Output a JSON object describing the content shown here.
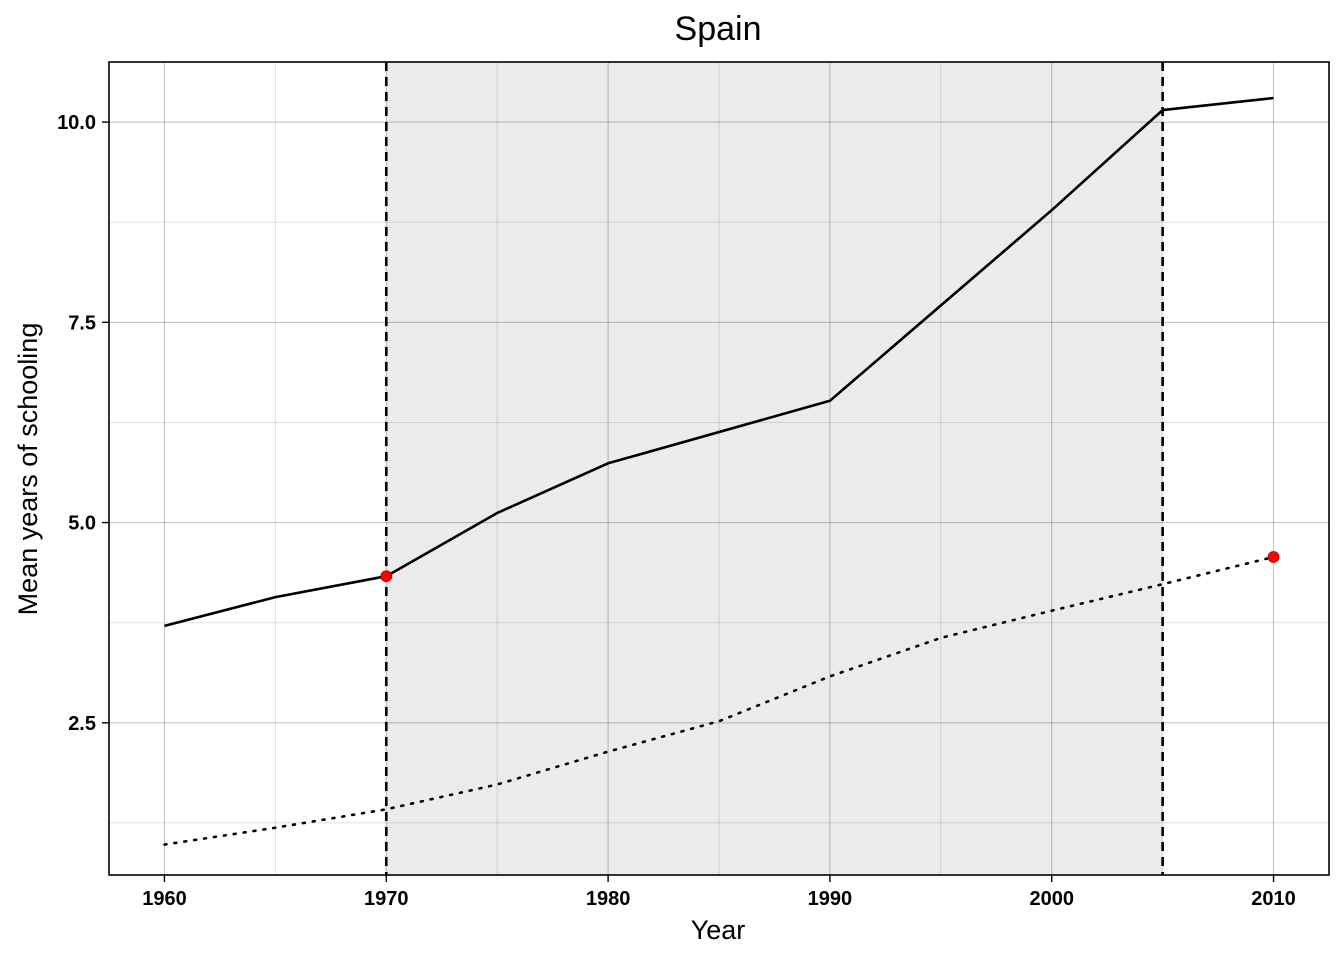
{
  "chart_data": {
    "type": "line",
    "title": "Spain",
    "xlabel": "Year",
    "ylabel": "Mean years of schooling",
    "xlim": [
      1957.5,
      2012.5
    ],
    "ylim": [
      0.6,
      10.75
    ],
    "x_ticks": [
      1960,
      1970,
      1980,
      1990,
      2000,
      2010
    ],
    "x_tick_labels": [
      "1960",
      "1970",
      "1980",
      "1990",
      "2000",
      "2010"
    ],
    "x_minor_ticks": [
      1965,
      1975,
      1985,
      1995,
      2005
    ],
    "y_ticks": [
      2.5,
      5.0,
      7.5,
      10.0
    ],
    "y_tick_labels": [
      "2.5",
      "5.0",
      "7.5",
      "10.0"
    ],
    "y_minor_ticks": [
      1.25,
      3.75,
      6.25,
      8.75
    ],
    "grid": true,
    "shaded_region": {
      "x_start": 1970,
      "x_end": 2005,
      "color": "#ebebeb"
    },
    "vertical_lines": [
      {
        "x": 1970,
        "style": "dashed",
        "color": "#000000"
      },
      {
        "x": 2005,
        "style": "dashed",
        "color": "#000000"
      }
    ],
    "series": [
      {
        "style": "solid",
        "color": "#000000",
        "x": [
          1960,
          1965,
          1970,
          1975,
          1980,
          1990,
          2000,
          2005,
          2010
        ],
        "values": [
          3.71,
          4.07,
          4.33,
          5.12,
          5.74,
          6.52,
          8.9,
          10.15,
          10.3
        ]
      },
      {
        "style": "dotted",
        "color": "#000000",
        "x": [
          1960,
          1965,
          1970,
          1975,
          1980,
          1985,
          1990,
          1995,
          2000,
          2005,
          2010
        ],
        "values": [
          0.98,
          1.19,
          1.42,
          1.73,
          2.14,
          2.52,
          3.08,
          3.56,
          3.9,
          4.23,
          4.57
        ]
      }
    ],
    "markers": [
      {
        "x": 1970,
        "y": 4.33,
        "color": "#ff0000"
      },
      {
        "x": 2010,
        "y": 4.57,
        "color": "#ff0000"
      }
    ]
  }
}
